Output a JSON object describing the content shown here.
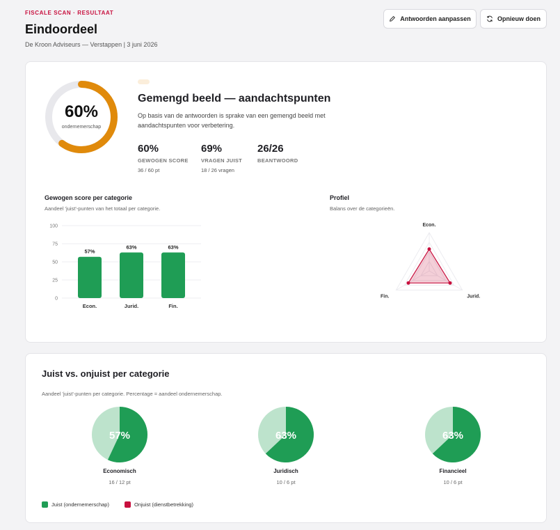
{
  "header": {
    "eyebrow": "FISCALE SCAN · RESULTAAT",
    "title": "Eindoordeel",
    "subtitle": "De Kroon Adviseurs — Verstappen | 3 juni 2026",
    "edit_label": "Antwoorden aanpassen",
    "redo_label": "Opnieuw doen"
  },
  "gauge": {
    "value_label": "60%",
    "value": 0.6,
    "caption": "ondernemerschap"
  },
  "summary": {
    "title": "Gemengd beeld — aandachtspunten",
    "text": "Op basis van de antwoorden is sprake van een gemengd beeld met aandachtspunten voor verbetering.",
    "stats": [
      {
        "value": "60%",
        "label": "GEWOGEN SCORE",
        "sub": "36 / 60 pt"
      },
      {
        "value": "69%",
        "label": "VRAGEN JUIST",
        "sub": "18 / 26 vragen"
      },
      {
        "value": "26/26",
        "label": "BEANTWOORD",
        "sub": ""
      }
    ]
  },
  "bar_section": {
    "title": "Gewogen score per categorie",
    "subtitle": "Aandeel 'juist'-punten van het totaal per categorie."
  },
  "radar_section": {
    "title": "Profiel",
    "subtitle": "Balans over de categorieën."
  },
  "chart_data": [
    {
      "type": "bar",
      "categories": [
        "Econ.",
        "Jurid.",
        "Fin."
      ],
      "values": [
        57,
        63,
        63
      ],
      "labels": [
        "57%",
        "63%",
        "63%"
      ],
      "ylim": [
        0,
        100
      ],
      "yticks": [
        0,
        25,
        50,
        75,
        100
      ],
      "grid": true,
      "color": "#1f9d55"
    },
    {
      "type": "radar",
      "axes": [
        "Econ.",
        "Jurid.",
        "Fin."
      ],
      "values": [
        57,
        63,
        63
      ],
      "range": [
        0,
        100
      ],
      "color": "#c8103e"
    },
    {
      "type": "pie",
      "pies": [
        {
          "name": "Economisch",
          "percent": 57,
          "label": "57%",
          "points": "16 / 12 pt"
        },
        {
          "name": "Juridisch",
          "percent": 63,
          "label": "63%",
          "points": "10 / 6 pt"
        },
        {
          "name": "Financieel",
          "percent": 63,
          "label": "63%",
          "points": "10 / 6 pt"
        }
      ],
      "legend": [
        "Juist (ondernemerschap)",
        "Onjuist (dienstbetrekking)"
      ],
      "colors": {
        "juist": "#1f9d55",
        "juist_light": "#bde3cc",
        "onjuist": "#c8103e"
      }
    }
  ],
  "card2": {
    "title": "Juist vs. onjuist per categorie",
    "subtitle": "Aandeel 'juist'-punten per categorie. Percentage = aandeel ondernemerschap."
  },
  "colors": {
    "accent": "#c8103e",
    "gauge": "#e08a0b",
    "gauge_track": "#e8e8ec",
    "green": "#1f9d55"
  }
}
